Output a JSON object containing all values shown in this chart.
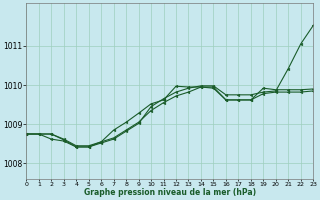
{
  "background_color": "#c8e8ee",
  "grid_color": "#9ecfbe",
  "line_color": "#1a5c2a",
  "xlabel": "Graphe pression niveau de la mer (hPa)",
  "xlim": [
    0,
    23
  ],
  "ylim": [
    1007.6,
    1012.1
  ],
  "yticks": [
    1008,
    1009,
    1010,
    1011
  ],
  "xtick_labels": [
    "0",
    "1",
    "2",
    "3",
    "4",
    "5",
    "6",
    "7",
    "8",
    "9",
    "10",
    "11",
    "12",
    "13",
    "14",
    "15",
    "16",
    "17",
    "18",
    "19",
    "20",
    "21",
    "22",
    "23"
  ],
  "series1_y": [
    1008.75,
    1008.75,
    1008.62,
    1008.57,
    1008.42,
    1008.42,
    1008.55,
    1008.85,
    1009.05,
    1009.28,
    1009.52,
    1009.62,
    1009.97,
    1009.95,
    1009.95,
    1009.92,
    1009.62,
    1009.62,
    1009.62,
    1009.92,
    1009.88,
    1009.88,
    1009.88,
    1009.9
  ],
  "series2_y": [
    1008.75,
    1008.75,
    1008.75,
    1008.62,
    1008.45,
    1008.45,
    1008.55,
    1008.65,
    1008.85,
    1009.05,
    1009.35,
    1009.55,
    1009.72,
    1009.82,
    1009.95,
    1009.95,
    1009.62,
    1009.62,
    1009.62,
    1009.78,
    1009.82,
    1009.82,
    1009.82,
    1009.85
  ],
  "series3_y": [
    1008.75,
    1008.75,
    1008.75,
    1008.6,
    1008.42,
    1008.42,
    1008.52,
    1008.62,
    1008.82,
    1009.02,
    1009.45,
    1009.65,
    1009.82,
    1009.92,
    1009.98,
    1009.98,
    1009.75,
    1009.75,
    1009.75,
    1009.82,
    1009.85,
    1010.42,
    1011.05,
    1011.52
  ]
}
